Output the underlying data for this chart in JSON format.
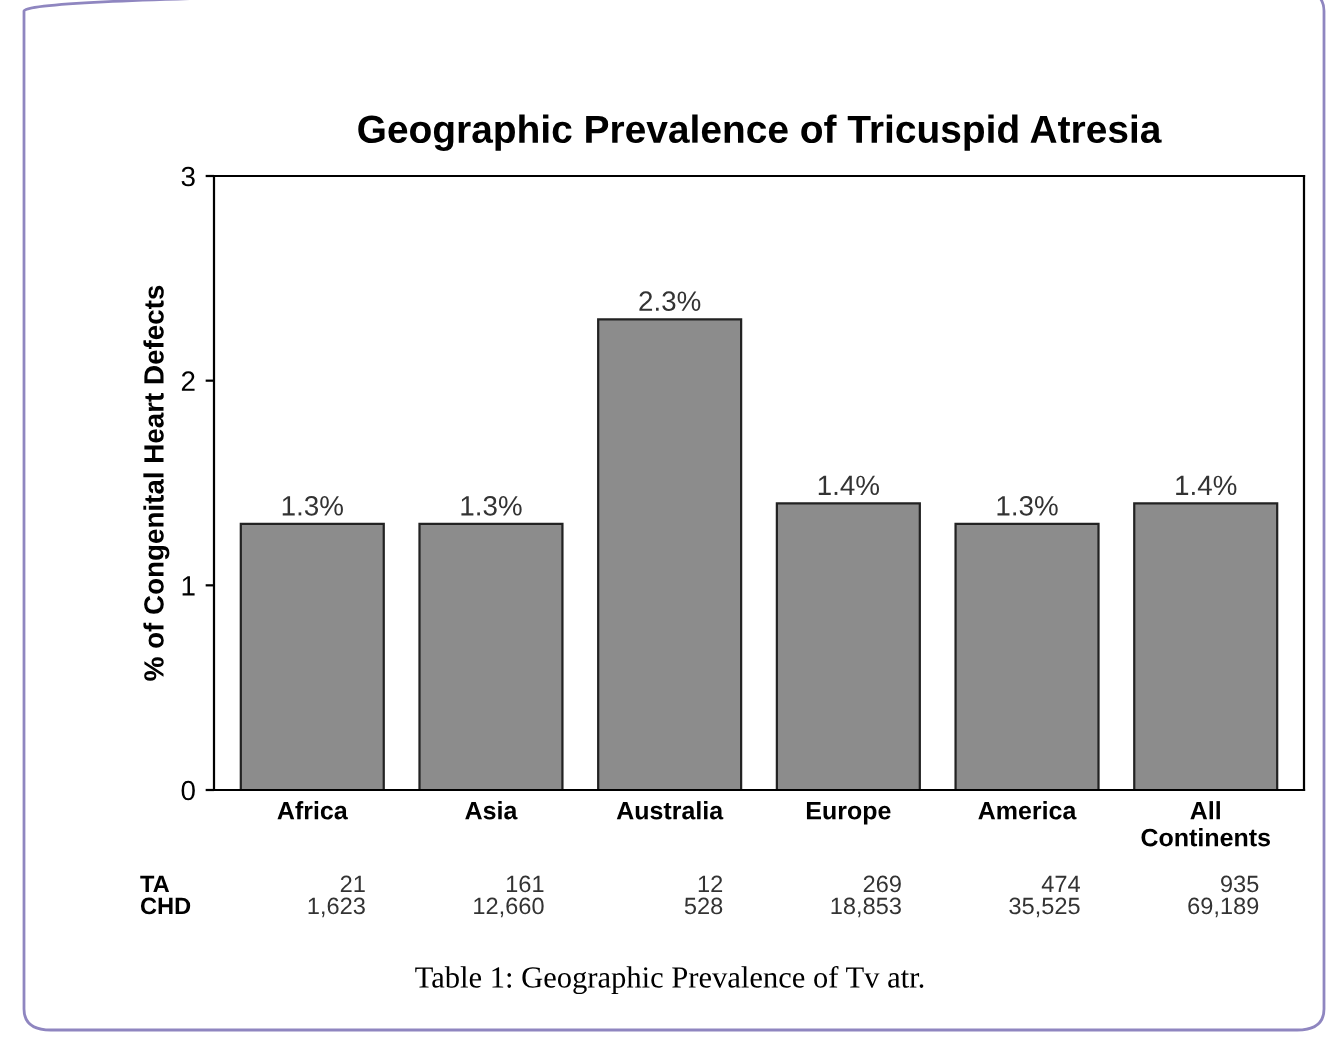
{
  "chart_data": {
    "type": "bar",
    "title": "Geographic Prevalence of Tricuspid Atresia",
    "ylabel": "% of Congenital Heart Defects",
    "categories": [
      "Africa",
      "Asia",
      "Australia",
      "Europe",
      "America",
      "All\nContinents"
    ],
    "values": [
      1.3,
      1.3,
      2.3,
      1.4,
      1.3,
      1.4
    ],
    "value_labels": [
      "1.3%",
      "1.3%",
      "2.3%",
      "1.4%",
      "1.3%",
      "1.4%"
    ],
    "color": "#8c8c8c",
    "ylim": [
      0,
      3
    ],
    "yticks": [
      0,
      1,
      2,
      3
    ],
    "grid": false,
    "legend": false,
    "annotations": [
      "TA",
      "21",
      "161",
      "12",
      "269",
      "474",
      "935",
      "CHD",
      "1,623",
      "12,660",
      "528",
      "18,853",
      "35,525",
      "69,189",
      "Table 1: Geographic Prevalence of Tv atr."
    ]
  }
}
